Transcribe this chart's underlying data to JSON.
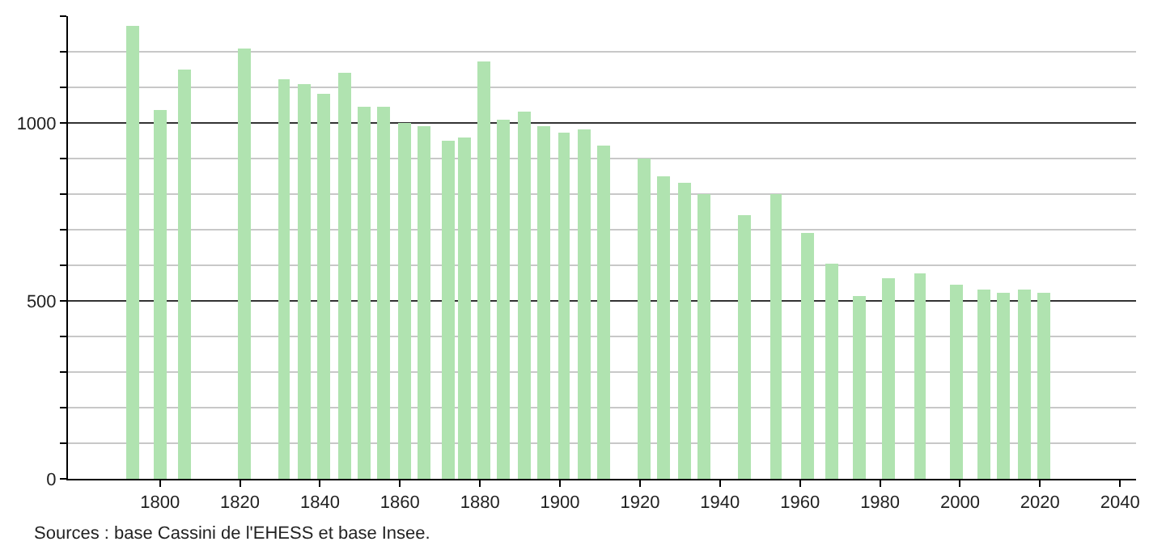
{
  "chart_data": {
    "type": "bar",
    "x": [
      1793,
      1800,
      1806,
      1821,
      1831,
      1836,
      1841,
      1846,
      1851,
      1856,
      1861,
      1866,
      1872,
      1876,
      1881,
      1886,
      1891,
      1896,
      1901,
      1906,
      1911,
      1921,
      1926,
      1931,
      1936,
      1946,
      1954,
      1962,
      1968,
      1975,
      1982,
      1990,
      1999,
      2006,
      2011,
      2016,
      2021
    ],
    "values": [
      1272,
      1038,
      1152,
      1208,
      1125,
      1107,
      1083,
      1143,
      1047,
      1046,
      1002,
      990,
      952,
      957,
      1173,
      1010,
      1033,
      993,
      972,
      981,
      937,
      900,
      849,
      831,
      798,
      743,
      798,
      693,
      603,
      513,
      563,
      576,
      545,
      531,
      525,
      531,
      525
    ],
    "color": "#b0e3b0",
    "xlim": [
      1777,
      2044
    ],
    "xticks": [
      1800,
      1820,
      1840,
      1860,
      1880,
      1900,
      1920,
      1940,
      1960,
      1980,
      2000,
      2020,
      2040
    ],
    "ylim": [
      0,
      1300
    ],
    "yticks": [
      0,
      {
        "value": 100,
        "label": null
      },
      {
        "value": 200,
        "label": null
      },
      {
        "value": 300,
        "label": null
      },
      {
        "value": 400,
        "label": null
      },
      500,
      {
        "value": 600,
        "label": null
      },
      {
        "value": 700,
        "label": null
      },
      {
        "value": 800,
        "label": null
      },
      {
        "value": 900,
        "label": null
      },
      1000,
      {
        "value": 1100,
        "label": null
      },
      {
        "value": 1200,
        "label": null
      },
      {
        "value": 1300,
        "label": null
      }
    ],
    "grid": "y",
    "annotations": [
      "Sources : base Cassini de l'EHESS et base Insee."
    ]
  }
}
